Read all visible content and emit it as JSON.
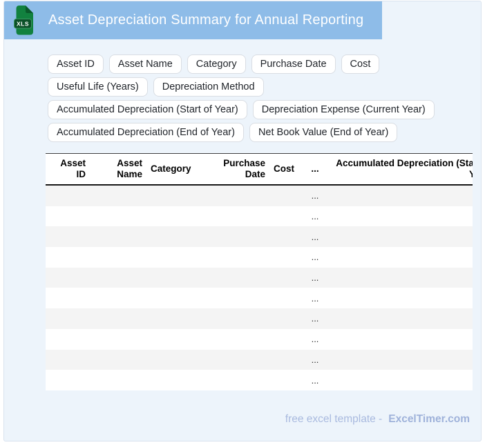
{
  "header": {
    "title": "Asset Depreciation Summary for Annual Reporting",
    "icon_label": "XLS"
  },
  "chips": [
    "Asset ID",
    "Asset Name",
    "Category",
    "Purchase Date",
    "Cost",
    "Useful Life (Years)",
    "Depreciation Method",
    "Accumulated Depreciation (Start of Year)",
    "Depreciation Expense (Current Year)",
    "Accumulated Depreciation (End of Year)",
    "Net Book Value (End of Year)"
  ],
  "table": {
    "columns": [
      {
        "label": "Asset ID",
        "align": "right"
      },
      {
        "label": "Asset Name",
        "align": "right"
      },
      {
        "label": "Category",
        "align": "left"
      },
      {
        "label": "Purchase Date",
        "align": "right"
      },
      {
        "label": "Cost",
        "align": "left"
      },
      {
        "label": "...",
        "align": "center"
      },
      {
        "label": "Accumulated Depreciation (Start of Year)",
        "align": "right"
      }
    ],
    "rows": [
      [
        "",
        "",
        "",
        "",
        "",
        "...",
        ""
      ],
      [
        "",
        "",
        "",
        "",
        "",
        "...",
        ""
      ],
      [
        "",
        "",
        "",
        "",
        "",
        "...",
        ""
      ],
      [
        "",
        "",
        "",
        "",
        "",
        "...",
        ""
      ],
      [
        "",
        "",
        "",
        "",
        "",
        "...",
        ""
      ],
      [
        "",
        "",
        "",
        "",
        "",
        "...",
        ""
      ],
      [
        "",
        "",
        "",
        "",
        "",
        "...",
        ""
      ],
      [
        "",
        "",
        "",
        "",
        "",
        "...",
        ""
      ],
      [
        "",
        "",
        "",
        "",
        "",
        "...",
        ""
      ],
      [
        "",
        "",
        "",
        "",
        "",
        "...",
        ""
      ]
    ]
  },
  "footer": {
    "text": "free excel template -",
    "brand": "ExcelTimer.com"
  },
  "colors": {
    "titlebar_blue": "#8ebce8",
    "card_background": "#edf4fb",
    "icon_green": "#12813f",
    "icon_fold_green": "#0a5a2b",
    "icon_badge_green": "#0b5128",
    "row_stripe": "#f4f4f4",
    "footer_text": "#a9badf",
    "chip_border": "#d9dde3"
  }
}
